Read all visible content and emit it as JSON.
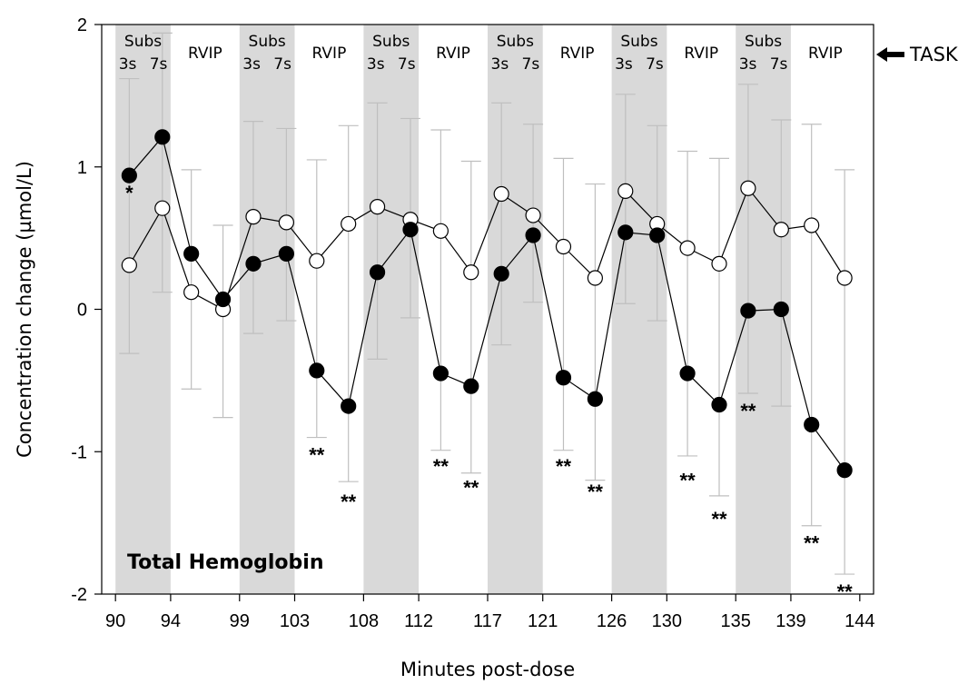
{
  "chart_data": {
    "type": "line",
    "panel_label": "Total Hemoglobin",
    "ylabel": "Concentration change (µmol/L)",
    "xlabel": "Minutes post-dose",
    "ylim": [
      -2,
      2
    ],
    "yticks": [
      "2",
      "1",
      "0",
      "-1",
      "-2"
    ],
    "xticks": [
      "90",
      "94",
      "99",
      "103",
      "108",
      "112",
      "117",
      "121",
      "126",
      "130",
      "135",
      "139",
      "144"
    ],
    "task_marker": "TASK",
    "task_labels": [
      {
        "title": "Subs",
        "sub": [
          "3s",
          "7s"
        ]
      },
      {
        "title": "RVIP"
      },
      {
        "title": "Subs",
        "sub": [
          "3s",
          "7s"
        ]
      },
      {
        "title": "RVIP"
      },
      {
        "title": "Subs",
        "sub": [
          "3s",
          "7s"
        ]
      },
      {
        "title": "RVIP"
      },
      {
        "title": "Subs",
        "sub": [
          "3s",
          "7s"
        ]
      },
      {
        "title": "RVIP"
      },
      {
        "title": "Subs",
        "sub": [
          "3s",
          "7s"
        ]
      },
      {
        "title": "RVIP"
      },
      {
        "title": "Subs",
        "sub": [
          "3s",
          "7s"
        ]
      },
      {
        "title": "RVIP"
      }
    ],
    "shaded_ranges": [
      [
        90,
        94
      ],
      [
        99,
        103
      ],
      [
        108,
        112
      ],
      [
        117,
        121
      ],
      [
        126,
        130
      ],
      [
        135,
        139
      ]
    ],
    "x": [
      91,
      93.4,
      95.5,
      97.8,
      100,
      102.4,
      104.6,
      106.9,
      109,
      111.4,
      113.6,
      115.8,
      118,
      120.3,
      122.5,
      124.8,
      127,
      129.3,
      131.5,
      133.8,
      135.9,
      138.3,
      140.5,
      142.9
    ],
    "series": [
      {
        "marker": "filled",
        "values": [
          0.94,
          1.21,
          0.39,
          0.07,
          0.32,
          0.39,
          -0.43,
          -0.68,
          0.26,
          0.56,
          -0.45,
          -0.54,
          0.25,
          0.52,
          -0.48,
          -0.63,
          0.54,
          0.52,
          -0.45,
          -0.67,
          -0.01,
          0.0,
          -0.81,
          -1.13
        ],
        "error_up": [
          0.68,
          0.73,
          0.59,
          0.52,
          1.0,
          0.88,
          1.48,
          1.97,
          1.19,
          0.78,
          1.71,
          1.58,
          1.2,
          0.78,
          1.54,
          1.51,
          0.97,
          0.77,
          1.56,
          1.73,
          1.59,
          1.33,
          2.11,
          2.11
        ],
        "error_down": [
          1.25,
          1.09,
          0.95,
          0.83,
          0.49,
          0.47,
          0.47,
          0.53,
          0.61,
          0.62,
          0.54,
          0.61,
          0.5,
          0.47,
          0.51,
          0.57,
          0.5,
          0.6,
          0.58,
          0.64,
          0.58,
          0.68,
          0.71,
          0.73
        ]
      },
      {
        "marker": "open",
        "values": [
          0.31,
          0.71,
          0.12,
          0.0,
          0.65,
          0.61,
          0.34,
          0.6,
          0.72,
          0.63,
          0.55,
          0.26,
          0.81,
          0.66,
          0.44,
          0.22,
          0.83,
          0.6,
          0.43,
          0.32,
          0.85,
          0.56,
          0.59,
          0.22
        ]
      }
    ],
    "significance": [
      {
        "x": 91,
        "y": 0.82,
        "text": "*"
      },
      {
        "x": 104.6,
        "y": -1.02,
        "text": "**"
      },
      {
        "x": 106.9,
        "y": -1.35,
        "text": "**"
      },
      {
        "x": 113.6,
        "y": -1.1,
        "text": "**"
      },
      {
        "x": 115.8,
        "y": -1.25,
        "text": "**"
      },
      {
        "x": 122.5,
        "y": -1.1,
        "text": "**"
      },
      {
        "x": 124.8,
        "y": -1.28,
        "text": "**"
      },
      {
        "x": 131.5,
        "y": -1.2,
        "text": "**"
      },
      {
        "x": 133.8,
        "y": -1.47,
        "text": "**"
      },
      {
        "x": 135.9,
        "y": -0.71,
        "text": "**"
      },
      {
        "x": 140.5,
        "y": -1.64,
        "text": "**"
      },
      {
        "x": 142.9,
        "y": -1.98,
        "text": "**"
      }
    ],
    "colors": {
      "shade": "#d9d9d9",
      "error_bar": "#bfbfbf",
      "line": "#000000",
      "marker_open_fill": "#ffffff"
    }
  }
}
